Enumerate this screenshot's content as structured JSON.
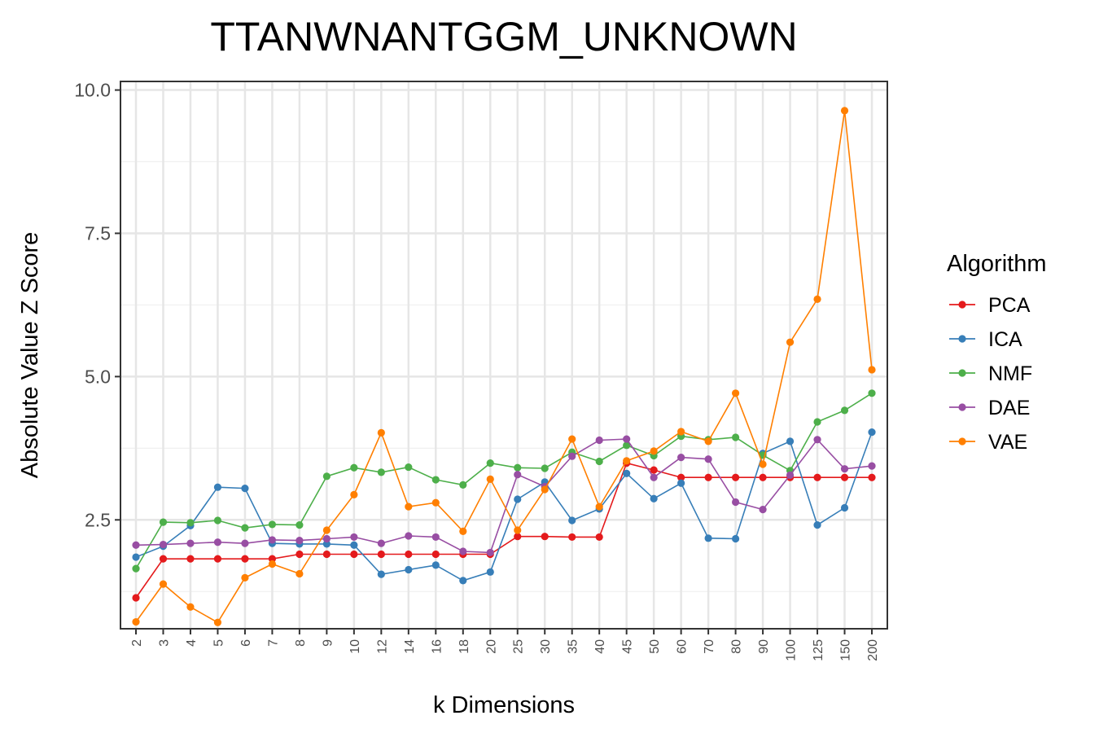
{
  "chart_data": {
    "type": "line",
    "title": "TTANWNANTGGM_UNKNOWN",
    "xlabel": "k Dimensions",
    "ylabel": "Absolute Value Z Score",
    "categories": [
      "2",
      "3",
      "4",
      "5",
      "6",
      "7",
      "8",
      "9",
      "10",
      "12",
      "14",
      "16",
      "18",
      "20",
      "25",
      "30",
      "35",
      "40",
      "45",
      "50",
      "60",
      "70",
      "80",
      "90",
      "100",
      "125",
      "150",
      "200"
    ],
    "yticks": [
      2.5,
      5.0,
      7.5,
      10.0
    ],
    "ytick_labels": [
      "2.5",
      "5.0",
      "7.5",
      "10.0"
    ],
    "ylim": [
      0.6,
      10.15
    ],
    "grid": true,
    "legend": {
      "title": "Algorithm",
      "placement": "right"
    },
    "series": [
      {
        "name": "PCA",
        "color": "#e41a1c",
        "values": [
          1.14,
          1.82,
          1.82,
          1.82,
          1.82,
          1.82,
          1.9,
          1.9,
          1.9,
          1.9,
          1.9,
          1.9,
          1.9,
          1.9,
          2.21,
          2.21,
          2.2,
          2.2,
          3.49,
          3.37,
          3.24,
          3.24,
          3.24,
          3.24,
          3.24,
          3.24,
          3.24,
          3.24
        ]
      },
      {
        "name": "ICA",
        "color": "#377eb8",
        "values": [
          1.85,
          2.04,
          2.4,
          3.07,
          3.05,
          2.09,
          2.08,
          2.08,
          2.06,
          1.55,
          1.63,
          1.71,
          1.44,
          1.59,
          2.86,
          3.16,
          2.49,
          2.69,
          3.31,
          2.87,
          3.14,
          2.18,
          2.17,
          3.66,
          3.87,
          2.41,
          2.71,
          4.03
        ]
      },
      {
        "name": "NMF",
        "color": "#4daf4a",
        "values": [
          1.65,
          2.46,
          2.45,
          2.49,
          2.36,
          2.42,
          2.41,
          3.26,
          3.41,
          3.33,
          3.42,
          3.2,
          3.11,
          3.49,
          3.41,
          3.4,
          3.68,
          3.52,
          3.8,
          3.62,
          3.96,
          3.9,
          3.94,
          3.63,
          3.36,
          4.21,
          4.41,
          4.71
        ]
      },
      {
        "name": "DAE",
        "color": "#984ea3",
        "values": [
          2.06,
          2.07,
          2.09,
          2.11,
          2.09,
          2.15,
          2.14,
          2.17,
          2.2,
          2.09,
          2.22,
          2.2,
          1.95,
          1.93,
          3.29,
          3.08,
          3.61,
          3.89,
          3.91,
          3.24,
          3.59,
          3.56,
          2.81,
          2.68,
          3.28,
          3.9,
          3.39,
          3.44
        ]
      },
      {
        "name": "VAE",
        "color": "#ff7f00",
        "values": [
          0.72,
          1.38,
          0.98,
          0.71,
          1.49,
          1.73,
          1.56,
          2.32,
          2.94,
          4.02,
          2.73,
          2.8,
          2.3,
          3.21,
          2.32,
          3.03,
          3.91,
          2.73,
          3.53,
          3.7,
          4.04,
          3.87,
          4.71,
          3.47,
          5.6,
          6.35,
          9.64,
          5.12
        ]
      }
    ]
  }
}
